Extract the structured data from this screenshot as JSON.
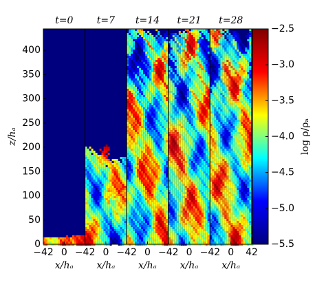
{
  "chart_data": [
    {
      "type": "heatmap",
      "title": "t=0",
      "xlabel": "x/hₐ",
      "ylabel": "z/hₐ",
      "xlim": [
        -42,
        42
      ],
      "xticks": [
        {
          "value": -42,
          "label": "−42"
        },
        0
      ],
      "ylim": [
        0,
        444
      ],
      "yticks": [
        0,
        50,
        100,
        150,
        200,
        250,
        300,
        350,
        400
      ]
    },
    {
      "type": "heatmap",
      "title": "t=7",
      "xlabel": "x/hₐ",
      "xlim": [
        -42,
        42
      ],
      "xticks": [
        {
          "value": -42,
          "label": "−42"
        },
        0
      ]
    },
    {
      "type": "heatmap",
      "title": "t=14",
      "xlabel": "x/hₐ",
      "xlim": [
        -42,
        42
      ],
      "xticks": [
        {
          "value": -42,
          "label": "−42"
        },
        0
      ]
    },
    {
      "type": "heatmap",
      "title": "t=21",
      "xlabel": "x/hₐ",
      "xlim": [
        -42,
        42
      ],
      "xticks": [
        {
          "value": -42,
          "label": "−42"
        },
        0
      ]
    },
    {
      "type": "heatmap",
      "title": "t=28",
      "xlabel": "x/hₐ",
      "xlim": [
        -42,
        42
      ],
      "xticks": [
        {
          "value": -42,
          "label": "−42"
        },
        0,
        42
      ]
    },
    {
      "type": "colorbar",
      "label": "log ρ/ρₐ",
      "ylim": [
        -5.5,
        -2.5
      ],
      "yticks": [
        {
          "value": -5.5,
          "label": "−5.5"
        },
        {
          "value": -5.0,
          "label": "−5.0"
        },
        {
          "value": -4.5,
          "label": "−4.5"
        },
        {
          "value": -4.0,
          "label": "−4.0"
        },
        {
          "value": -3.5,
          "label": "−3.5"
        },
        {
          "value": -3.0,
          "label": "−3.0"
        },
        {
          "value": -2.5,
          "label": "−2.5"
        }
      ],
      "colors": [
        "#00007f",
        "#0000ff",
        "#00ffff",
        "#ffff00",
        "#ff0000",
        "#7f0000"
      ]
    }
  ]
}
